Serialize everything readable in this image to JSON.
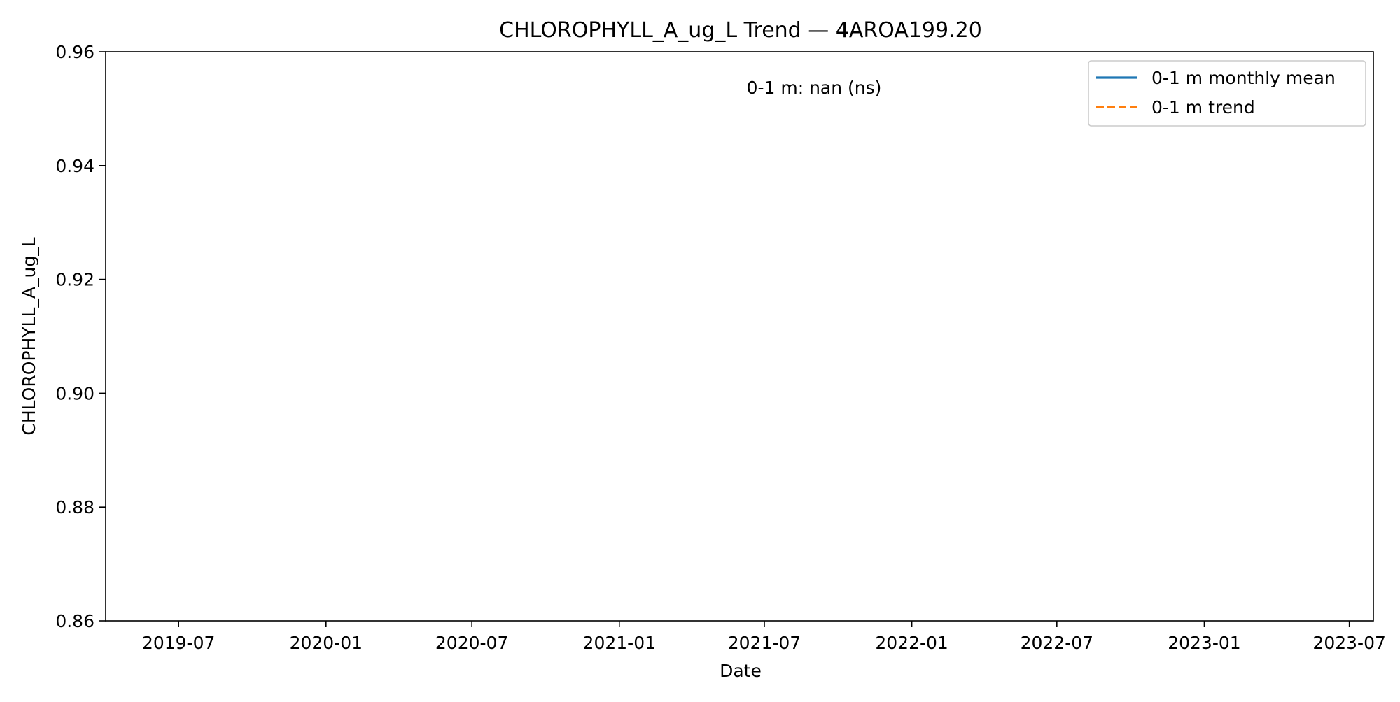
{
  "chart_data": {
    "type": "line",
    "title": "CHLOROPHYLL_A_ug_L Trend — 4AROA199.20",
    "xlabel": "Date",
    "ylabel": "CHLOROPHYLL_A_ug_L",
    "x_range": [
      "2019-04-01",
      "2023-07-31"
    ],
    "ylim": [
      0.86,
      0.96
    ],
    "x_ticks": [
      "2019-07",
      "2020-01",
      "2020-07",
      "2021-01",
      "2021-07",
      "2022-01",
      "2022-07",
      "2023-01",
      "2023-07"
    ],
    "y_ticks": [
      "0.86",
      "0.88",
      "0.90",
      "0.92",
      "0.94",
      "0.96"
    ],
    "annotation": "0-1 m: nan (ns)",
    "grid": false,
    "legend_position": "top-right",
    "series": [
      {
        "name": "0-1 m monthly mean",
        "style": "solid",
        "color": "#1f77b4",
        "x": [],
        "y": []
      },
      {
        "name": "0-1 m trend",
        "style": "dashed",
        "color": "#ff7f0e",
        "x": [],
        "y": []
      }
    ]
  }
}
